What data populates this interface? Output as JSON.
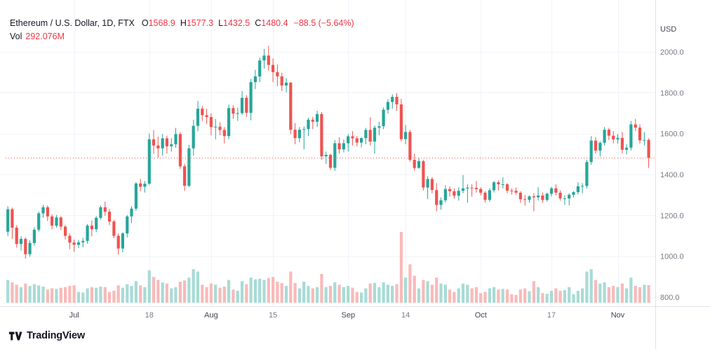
{
  "header": {
    "symbol_title": "Ethereum / U.S. Dollar, 1D, FTX",
    "o_label": "O",
    "o": "1568.9",
    "h_label": "H",
    "h": "1577.3",
    "l_label": "L",
    "l": "1432.5",
    "c_label": "C",
    "c": "1480.4",
    "change": "−88.5 (−5.64%)",
    "volume_label": "Vol",
    "volume_value": "292.076M"
  },
  "axes": {
    "price_axis_title": "USD",
    "price_ticks": [
      {
        "label": "2000.0",
        "value": 2000
      },
      {
        "label": "1800.0",
        "value": 1800
      },
      {
        "label": "1600.0",
        "value": 1600
      },
      {
        "label": "1400.0",
        "value": 1400
      },
      {
        "label": "1200.0",
        "value": 1200
      },
      {
        "label": "1000.0",
        "value": 1000
      },
      {
        "label": "800.0",
        "value": 800
      }
    ],
    "time_ticks": [
      {
        "label": "Jul",
        "index": 15,
        "major": true
      },
      {
        "label": "18",
        "index": 32,
        "major": false
      },
      {
        "label": "Aug",
        "index": 46,
        "major": true
      },
      {
        "label": "15",
        "index": 60,
        "major": false
      },
      {
        "label": "Sep",
        "index": 77,
        "major": true
      },
      {
        "label": "14",
        "index": 90,
        "major": false
      },
      {
        "label": "Oct",
        "index": 107,
        "major": true
      },
      {
        "label": "17",
        "index": 123,
        "major": false
      },
      {
        "label": "Nov",
        "index": 138,
        "major": true
      }
    ]
  },
  "footer": {
    "logo_text": "TradingView"
  },
  "colors": {
    "up": "#26a69a",
    "down": "#ef5350",
    "up_vol": "#a8dbd6",
    "down_vol": "#f8bab9",
    "value_down": "#f23645",
    "title_text": "#131722",
    "axis_text": "#787b86",
    "axis_text_strong": "#434651",
    "grid": "#f0f3fa",
    "separator": "#e0e3eb",
    "last_line": "#ef5350",
    "logo_text": "#131722"
  },
  "chart_data": {
    "type": "candlestick+volume",
    "title": "Ethereum / U.S. Dollar, 1D, FTX",
    "exchange": "FTX",
    "interval": "1D",
    "price_range": [
      800,
      2000
    ],
    "last_close": 1480.4,
    "legend_ohlc": {
      "o": 1568.9,
      "h": 1577.3,
      "l": 1432.5,
      "c": 1480.4,
      "change": -88.5,
      "change_pct": -5.64,
      "volume_m": 292.076
    },
    "candle_format": [
      "date",
      "open",
      "high",
      "low",
      "close",
      "volume_m"
    ],
    "candles": [
      [
        "06-16",
        1120,
        1245,
        1098,
        1230,
        380
      ],
      [
        "06-17",
        1230,
        1238,
        1085,
        1140,
        340
      ],
      [
        "06-18",
        1140,
        1152,
        1042,
        1060,
        300
      ],
      [
        "06-19",
        1060,
        1098,
        1028,
        1085,
        260
      ],
      [
        "06-20",
        1085,
        1092,
        988,
        1010,
        320
      ],
      [
        "06-21",
        1010,
        1078,
        998,
        1065,
        280
      ],
      [
        "06-22",
        1065,
        1142,
        1052,
        1130,
        310
      ],
      [
        "06-23",
        1130,
        1218,
        1120,
        1210,
        290
      ],
      [
        "06-24",
        1210,
        1252,
        1188,
        1240,
        270
      ],
      [
        "06-25",
        1240,
        1248,
        1172,
        1195,
        220
      ],
      [
        "06-26",
        1195,
        1205,
        1132,
        1150,
        240
      ],
      [
        "06-27",
        1150,
        1202,
        1140,
        1190,
        230
      ],
      [
        "06-28",
        1190,
        1196,
        1128,
        1145,
        250
      ],
      [
        "06-29",
        1145,
        1152,
        1082,
        1100,
        260
      ],
      [
        "06-30",
        1100,
        1112,
        1035,
        1067,
        280
      ],
      [
        "07-01",
        1067,
        1082,
        1022,
        1056,
        290
      ],
      [
        "07-02",
        1056,
        1080,
        1040,
        1068,
        180
      ],
      [
        "07-03",
        1068,
        1090,
        1043,
        1075,
        170
      ],
      [
        "07-04",
        1075,
        1158,
        1062,
        1150,
        240
      ],
      [
        "07-05",
        1150,
        1175,
        1098,
        1132,
        260
      ],
      [
        "07-06",
        1132,
        1196,
        1118,
        1188,
        250
      ],
      [
        "07-07",
        1188,
        1248,
        1180,
        1240,
        270
      ],
      [
        "07-08",
        1240,
        1268,
        1198,
        1218,
        260
      ],
      [
        "07-09",
        1218,
        1232,
        1152,
        1170,
        180
      ],
      [
        "07-10",
        1170,
        1178,
        1088,
        1100,
        200
      ],
      [
        "07-11",
        1100,
        1112,
        1008,
        1038,
        290
      ],
      [
        "07-12",
        1038,
        1118,
        1020,
        1112,
        250
      ],
      [
        "07-13",
        1112,
        1202,
        1092,
        1195,
        310
      ],
      [
        "07-14",
        1195,
        1245,
        1162,
        1233,
        280
      ],
      [
        "07-15",
        1233,
        1362,
        1222,
        1356,
        360
      ],
      [
        "07-16",
        1356,
        1378,
        1318,
        1340,
        290
      ],
      [
        "07-17",
        1340,
        1368,
        1312,
        1355,
        260
      ],
      [
        "07-18",
        1355,
        1600,
        1348,
        1572,
        540
      ],
      [
        "07-19",
        1572,
        1618,
        1500,
        1542,
        430
      ],
      [
        "07-20",
        1542,
        1585,
        1482,
        1528,
        380
      ],
      [
        "07-21",
        1528,
        1598,
        1492,
        1577,
        340
      ],
      [
        "07-22",
        1577,
        1590,
        1502,
        1538,
        320
      ],
      [
        "07-23",
        1538,
        1578,
        1512,
        1548,
        240
      ],
      [
        "07-24",
        1548,
        1628,
        1530,
        1598,
        260
      ],
      [
        "07-25",
        1598,
        1608,
        1428,
        1440,
        350
      ],
      [
        "07-26",
        1440,
        1452,
        1320,
        1345,
        370
      ],
      [
        "07-27",
        1345,
        1545,
        1338,
        1528,
        420
      ],
      [
        "07-28",
        1528,
        1668,
        1492,
        1638,
        560
      ],
      [
        "07-29",
        1638,
        1760,
        1612,
        1722,
        520
      ],
      [
        "07-30",
        1722,
        1735,
        1662,
        1690,
        300
      ],
      [
        "07-31",
        1690,
        1722,
        1648,
        1681,
        260
      ],
      [
        "08-01",
        1681,
        1700,
        1592,
        1632,
        320
      ],
      [
        "08-02",
        1632,
        1672,
        1572,
        1634,
        300
      ],
      [
        "08-03",
        1634,
        1655,
        1592,
        1618,
        250
      ],
      [
        "08-04",
        1618,
        1632,
        1552,
        1588,
        270
      ],
      [
        "08-05",
        1588,
        1742,
        1572,
        1725,
        380
      ],
      [
        "08-06",
        1725,
        1738,
        1672,
        1698,
        220
      ],
      [
        "08-07",
        1698,
        1728,
        1662,
        1700,
        200
      ],
      [
        "08-08",
        1700,
        1808,
        1692,
        1775,
        360
      ],
      [
        "08-09",
        1775,
        1788,
        1682,
        1702,
        310
      ],
      [
        "08-10",
        1702,
        1868,
        1665,
        1852,
        420
      ],
      [
        "08-11",
        1852,
        1912,
        1818,
        1880,
        390
      ],
      [
        "08-12",
        1880,
        1972,
        1852,
        1958,
        400
      ],
      [
        "08-13",
        1958,
        2014,
        1918,
        1982,
        380
      ],
      [
        "08-14",
        1982,
        2030,
        1908,
        1936,
        410
      ],
      [
        "08-15",
        1936,
        1968,
        1852,
        1901,
        430
      ],
      [
        "08-16",
        1901,
        1938,
        1832,
        1880,
        350
      ],
      [
        "08-17",
        1880,
        1898,
        1808,
        1835,
        330
      ],
      [
        "08-18",
        1835,
        1872,
        1802,
        1849,
        280
      ],
      [
        "08-19",
        1849,
        1852,
        1598,
        1619,
        520
      ],
      [
        "08-20",
        1619,
        1652,
        1548,
        1578,
        330
      ],
      [
        "08-21",
        1578,
        1632,
        1558,
        1619,
        240
      ],
      [
        "08-22",
        1619,
        1635,
        1522,
        1622,
        350
      ],
      [
        "08-23",
        1622,
        1678,
        1588,
        1668,
        280
      ],
      [
        "08-24",
        1668,
        1682,
        1622,
        1658,
        240
      ],
      [
        "08-25",
        1658,
        1712,
        1632,
        1696,
        260
      ],
      [
        "08-26",
        1696,
        1705,
        1472,
        1489,
        480
      ],
      [
        "08-27",
        1489,
        1512,
        1452,
        1496,
        260
      ],
      [
        "08-28",
        1496,
        1502,
        1422,
        1433,
        280
      ],
      [
        "08-29",
        1433,
        1568,
        1418,
        1553,
        340
      ],
      [
        "08-30",
        1553,
        1582,
        1502,
        1523,
        300
      ],
      [
        "08-31",
        1523,
        1572,
        1508,
        1553,
        260
      ],
      [
        "09-01",
        1553,
        1598,
        1512,
        1587,
        280
      ],
      [
        "09-02",
        1587,
        1612,
        1542,
        1577,
        250
      ],
      [
        "09-03",
        1577,
        1588,
        1538,
        1556,
        180
      ],
      [
        "09-04",
        1556,
        1582,
        1532,
        1578,
        170
      ],
      [
        "09-05",
        1578,
        1628,
        1548,
        1618,
        240
      ],
      [
        "09-06",
        1618,
        1680,
        1542,
        1561,
        320
      ],
      [
        "09-07",
        1561,
        1640,
        1502,
        1629,
        330
      ],
      [
        "09-08",
        1629,
        1658,
        1592,
        1636,
        260
      ],
      [
        "09-09",
        1636,
        1728,
        1622,
        1717,
        340
      ],
      [
        "09-10",
        1717,
        1768,
        1698,
        1755,
        300
      ],
      [
        "09-11",
        1755,
        1792,
        1722,
        1780,
        280
      ],
      [
        "09-12",
        1780,
        1798,
        1712,
        1743,
        310
      ],
      [
        "09-13",
        1743,
        1770,
        1562,
        1573,
        1180
      ],
      [
        "09-14",
        1573,
        1642,
        1548,
        1608,
        420
      ],
      [
        "09-15",
        1608,
        1618,
        1462,
        1472,
        640
      ],
      [
        "09-16",
        1472,
        1502,
        1418,
        1432,
        450
      ],
      [
        "09-17",
        1432,
        1482,
        1428,
        1465,
        240
      ],
      [
        "09-18",
        1465,
        1472,
        1322,
        1336,
        380
      ],
      [
        "09-19",
        1336,
        1392,
        1280,
        1378,
        360
      ],
      [
        "09-20",
        1378,
        1388,
        1308,
        1324,
        300
      ],
      [
        "09-21",
        1324,
        1358,
        1220,
        1251,
        420
      ],
      [
        "09-22",
        1251,
        1288,
        1228,
        1274,
        320
      ],
      [
        "09-23",
        1274,
        1348,
        1262,
        1329,
        300
      ],
      [
        "09-24",
        1329,
        1342,
        1292,
        1318,
        220
      ],
      [
        "09-25",
        1318,
        1332,
        1282,
        1296,
        180
      ],
      [
        "09-26",
        1296,
        1338,
        1272,
        1320,
        240
      ],
      [
        "09-27",
        1320,
        1398,
        1308,
        1332,
        320
      ],
      [
        "09-28",
        1332,
        1352,
        1262,
        1336,
        300
      ],
      [
        "09-29",
        1336,
        1352,
        1292,
        1335,
        240
      ],
      [
        "09-30",
        1335,
        1368,
        1312,
        1329,
        260
      ],
      [
        "10-01",
        1329,
        1338,
        1298,
        1311,
        160
      ],
      [
        "10-02",
        1311,
        1318,
        1262,
        1276,
        180
      ],
      [
        "10-03",
        1276,
        1332,
        1266,
        1323,
        240
      ],
      [
        "10-04",
        1323,
        1368,
        1312,
        1362,
        260
      ],
      [
        "10-05",
        1362,
        1372,
        1322,
        1352,
        220
      ],
      [
        "10-06",
        1352,
        1386,
        1332,
        1352,
        230
      ],
      [
        "10-07",
        1352,
        1358,
        1308,
        1321,
        220
      ],
      [
        "10-08",
        1321,
        1332,
        1302,
        1320,
        140
      ],
      [
        "10-09",
        1320,
        1336,
        1302,
        1311,
        130
      ],
      [
        "10-10",
        1311,
        1318,
        1262,
        1279,
        220
      ],
      [
        "10-11",
        1279,
        1300,
        1248,
        1276,
        240
      ],
      [
        "10-12",
        1276,
        1298,
        1262,
        1293,
        190
      ],
      [
        "10-13",
        1293,
        1308,
        1220,
        1288,
        360
      ],
      [
        "10-14",
        1288,
        1338,
        1272,
        1297,
        260
      ],
      [
        "10-15",
        1297,
        1312,
        1262,
        1275,
        160
      ],
      [
        "10-16",
        1275,
        1312,
        1268,
        1306,
        150
      ],
      [
        "10-17",
        1306,
        1340,
        1292,
        1332,
        200
      ],
      [
        "10-18",
        1332,
        1352,
        1298,
        1311,
        240
      ],
      [
        "10-19",
        1311,
        1322,
        1272,
        1283,
        200
      ],
      [
        "10-20",
        1283,
        1298,
        1252,
        1283,
        210
      ],
      [
        "10-21",
        1283,
        1308,
        1249,
        1301,
        260
      ],
      [
        "10-22",
        1301,
        1318,
        1288,
        1314,
        140
      ],
      [
        "10-23",
        1314,
        1362,
        1302,
        1342,
        200
      ],
      [
        "10-24",
        1342,
        1358,
        1308,
        1344,
        240
      ],
      [
        "10-25",
        1344,
        1472,
        1332,
        1461,
        520
      ],
      [
        "10-26",
        1461,
        1588,
        1448,
        1566,
        560
      ],
      [
        "10-27",
        1566,
        1582,
        1502,
        1517,
        380
      ],
      [
        "10-28",
        1517,
        1562,
        1488,
        1555,
        320
      ],
      [
        "10-29",
        1555,
        1632,
        1542,
        1619,
        340
      ],
      [
        "10-30",
        1619,
        1628,
        1568,
        1590,
        260
      ],
      [
        "10-31",
        1590,
        1612,
        1552,
        1572,
        280
      ],
      [
        "11-01",
        1572,
        1598,
        1552,
        1579,
        260
      ],
      [
        "11-02",
        1579,
        1608,
        1502,
        1521,
        320
      ],
      [
        "11-03",
        1521,
        1548,
        1498,
        1531,
        240
      ],
      [
        "11-04",
        1531,
        1662,
        1518,
        1645,
        420
      ],
      [
        "11-05",
        1645,
        1672,
        1612,
        1629,
        280
      ],
      [
        "11-06",
        1629,
        1645,
        1552,
        1567,
        260
      ],
      [
        "11-07",
        1567,
        1608,
        1542,
        1569,
        300
      ],
      [
        "11-08",
        1568.9,
        1577.3,
        1432.5,
        1480.4,
        292
      ]
    ]
  }
}
